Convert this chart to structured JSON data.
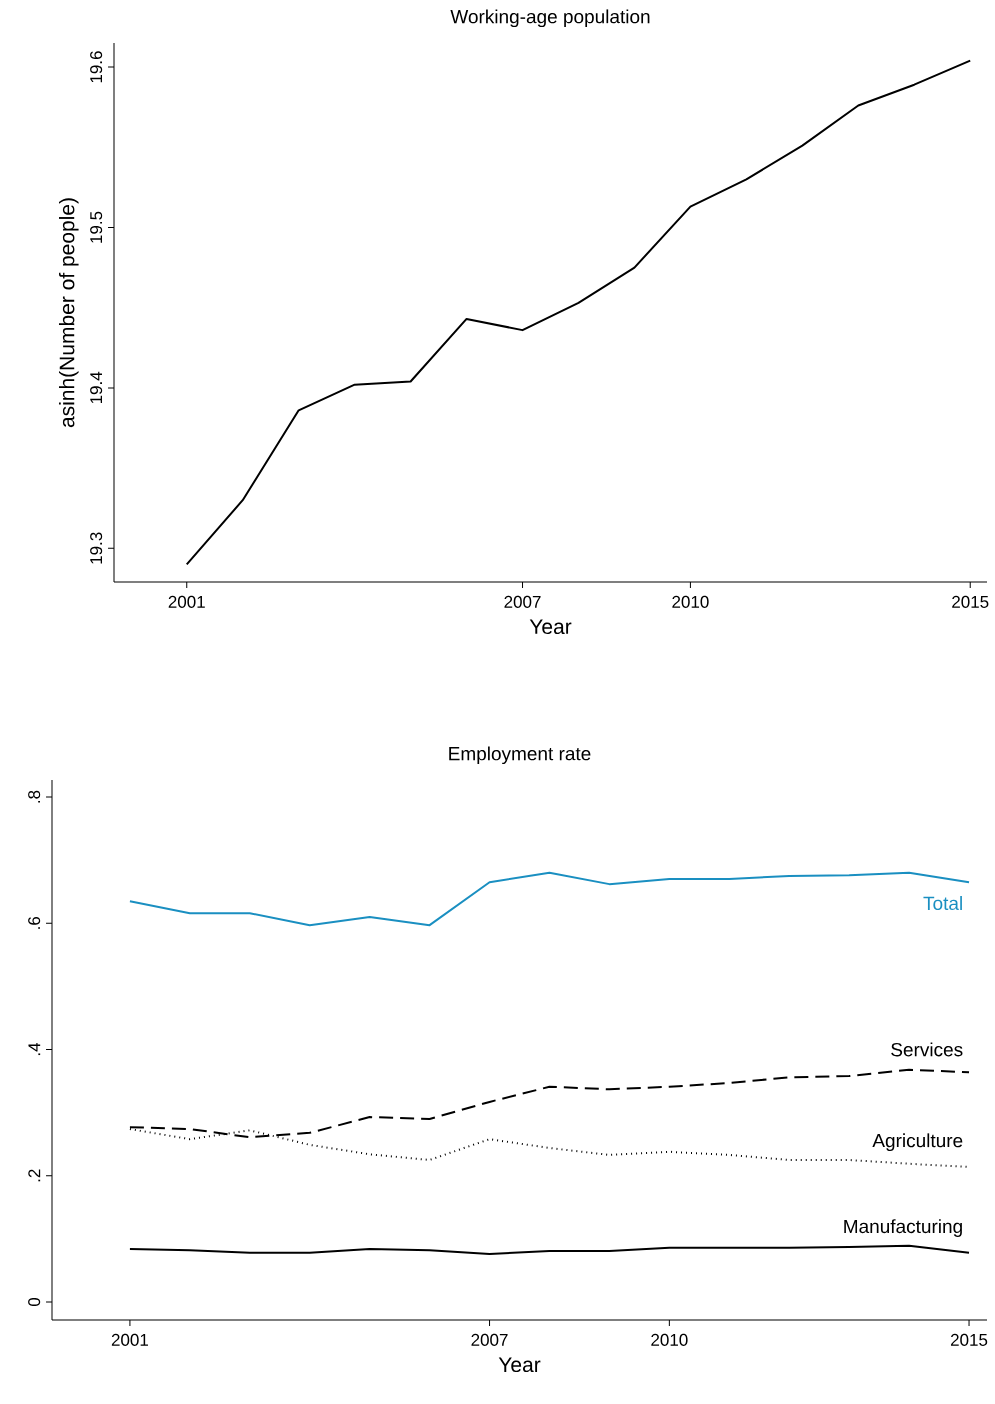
{
  "chart_data": [
    {
      "type": "line",
      "title": "Working-age population",
      "xlabel": "Year",
      "ylabel": "asinh(Number of people)",
      "x": [
        2001,
        2002,
        2003,
        2004,
        2005,
        2006,
        2007,
        2008,
        2009,
        2010,
        2011,
        2012,
        2013,
        2014,
        2015
      ],
      "series": [
        {
          "color": "#000000",
          "values": [
            19.29,
            19.33,
            19.386,
            19.402,
            19.404,
            19.443,
            19.436,
            19.453,
            19.475,
            19.513,
            19.53,
            19.551,
            19.576,
            19.589,
            19.604
          ]
        }
      ],
      "xlim": [
        1999.7,
        2015.3
      ],
      "ylim": [
        19.279,
        19.615
      ],
      "xticks": [
        2001,
        2007,
        2010,
        2015
      ],
      "yticks": [
        19.3,
        19.4,
        19.5,
        19.6
      ],
      "grid": false,
      "legend": false,
      "marker": "none",
      "line_style": "solid"
    },
    {
      "type": "line",
      "title": "Employment rate",
      "xlabel": "Year",
      "x": [
        2001,
        2002,
        2003,
        2004,
        2005,
        2006,
        2007,
        2008,
        2009,
        2010,
        2011,
        2012,
        2013,
        2014,
        2015
      ],
      "series": [
        {
          "name": "Total",
          "color": "#1a8fc1",
          "line_style": "solid",
          "values": [
            0.635,
            0.616,
            0.616,
            0.597,
            0.61,
            0.597,
            0.665,
            0.68,
            0.662,
            0.67,
            0.67,
            0.675,
            0.676,
            0.68,
            0.665
          ]
        },
        {
          "name": "Services",
          "color": "#000000",
          "line_style": "dashed",
          "values": [
            0.277,
            0.274,
            0.261,
            0.268,
            0.293,
            0.29,
            0.317,
            0.341,
            0.337,
            0.341,
            0.347,
            0.356,
            0.358,
            0.368,
            0.364
          ]
        },
        {
          "name": "Agriculture",
          "color": "#000000",
          "line_style": "dotted",
          "values": [
            0.274,
            0.258,
            0.272,
            0.249,
            0.234,
            0.225,
            0.258,
            0.244,
            0.233,
            0.238,
            0.233,
            0.225,
            0.225,
            0.219,
            0.214
          ]
        },
        {
          "name": "Manufacturing",
          "color": "#000000",
          "line_style": "solid",
          "values": [
            0.084,
            0.082,
            0.078,
            0.078,
            0.084,
            0.082,
            0.076,
            0.081,
            0.081,
            0.086,
            0.086,
            0.086,
            0.087,
            0.089,
            0.078
          ]
        }
      ],
      "xlim": [
        1999.7,
        2015.3
      ],
      "ylim": [
        -0.0285,
        0.827
      ],
      "xticks": [
        2001,
        2007,
        2010,
        2015
      ],
      "yticks": [
        0,
        {
          "value": 0.2,
          "label": ".2"
        },
        {
          "value": 0.4,
          "label": ".4"
        },
        {
          "value": 0.6,
          "label": ".6"
        },
        {
          "value": 0.8,
          "label": ".8"
        }
      ],
      "grid": false,
      "legend": false,
      "marker": "none"
    }
  ]
}
